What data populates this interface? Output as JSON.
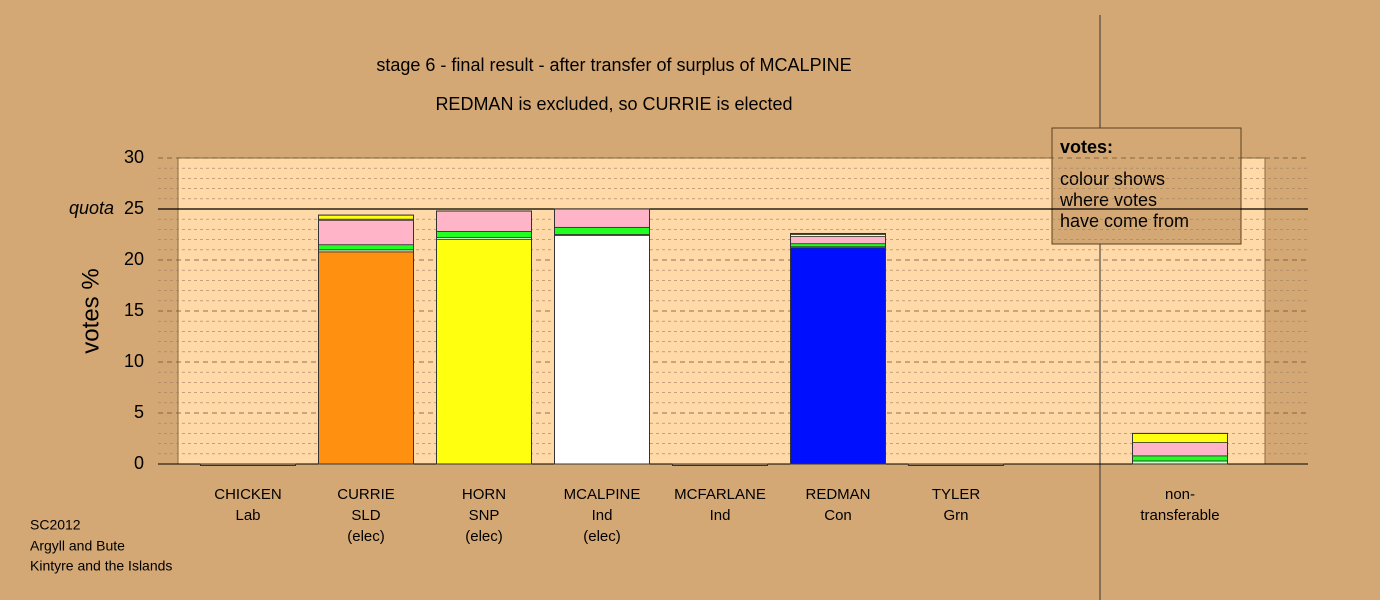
{
  "chart_data": {
    "type": "stacked-bar",
    "title": "stage 6 - final result - after transfer of surplus of MCALPINE",
    "subtitle": "REDMAN is excluded, so CURRIE is elected",
    "y_label": "votes %",
    "quota_label": "quota",
    "quota": 25,
    "categories": [
      [
        "CHICKEN",
        "Lab"
      ],
      [
        "CURRIE",
        "SLD",
        "(elec)"
      ],
      [
        "HORN",
        "SNP",
        "(elec)"
      ],
      [
        "MCALPINE",
        "Ind",
        "(elec)"
      ],
      [
        "MCFARLANE",
        "Ind"
      ],
      [
        "REDMAN",
        "Con"
      ],
      [
        "TYLER",
        "Grn"
      ],
      [
        "non-",
        "transferable"
      ]
    ],
    "series": [
      {
        "color": "#ff9010",
        "values": [
          0,
          20.8,
          0,
          0,
          0,
          0,
          0,
          0
        ]
      },
      {
        "color": "#ffff10",
        "values": [
          0,
          0,
          22,
          0,
          0,
          0,
          0,
          0
        ]
      },
      {
        "color": "#ffffff",
        "values": [
          0,
          0,
          0,
          22.4,
          0,
          0,
          0,
          0
        ]
      },
      {
        "color": "#0010ff",
        "values": [
          0,
          0,
          0,
          0,
          0,
          21.2,
          0,
          0
        ]
      },
      {
        "color": "#c8ffc8",
        "values": [
          0,
          0.2,
          0.2,
          0.1,
          0,
          0.1,
          0,
          0.3
        ]
      },
      {
        "color": "#20ff20",
        "values": [
          0,
          0.5,
          0.6,
          0.7,
          0,
          0.3,
          0,
          0.5
        ]
      },
      {
        "color": "#ffb4c8",
        "values": [
          0,
          2.4,
          2.0,
          1.8,
          0,
          0.7,
          0,
          1.3
        ]
      },
      {
        "color": "#ffffa8",
        "values": [
          0,
          0.1,
          0,
          0,
          0,
          0.2,
          0,
          0
        ]
      },
      {
        "color": "#ffff10",
        "values": [
          0,
          0.4,
          0,
          0,
          0,
          0.1,
          0,
          0.9
        ]
      }
    ],
    "ylim": [
      0,
      30
    ],
    "yticks": [
      0,
      5,
      10,
      15,
      20,
      25,
      30
    ],
    "minor_yticks": [
      1,
      2,
      3,
      4,
      6,
      7,
      8,
      9,
      11,
      12,
      13,
      14,
      16,
      17,
      18,
      19,
      21,
      22,
      23,
      24,
      26,
      27,
      28,
      29
    ],
    "grid": true,
    "legend": {
      "title": "votes:",
      "lines": [
        "colour shows",
        "where votes",
        "have come from"
      ]
    },
    "footer": [
      "SC2012",
      "Argyll and Bute",
      "Kintyre and the Islands"
    ]
  }
}
